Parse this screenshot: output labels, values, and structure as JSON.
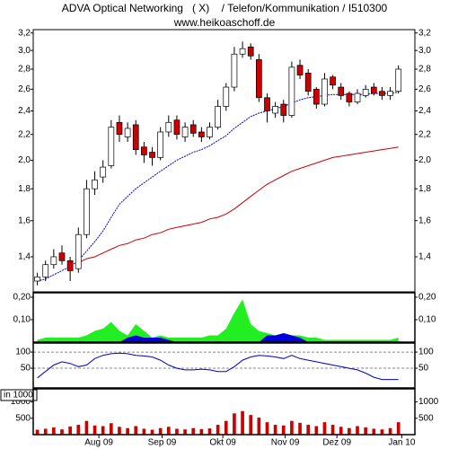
{
  "chart_data": [
    {
      "type": "candlestick",
      "title": "ADVA Optical Networking   ( X)    / Telefon/Kommunikation / I510300",
      "subtitle": "www.heikoaschoff.de",
      "xlim": [
        -0.5,
        46
      ],
      "log_scale": true,
      "ylim": [
        1.23,
        3.24
      ],
      "yticks": [
        {
          "value": 1.4,
          "label": "1,4"
        },
        {
          "value": 1.6,
          "label": "1,6"
        },
        {
          "value": 1.8,
          "label": "1,8"
        },
        {
          "value": 2.0,
          "label": "2,0"
        },
        {
          "value": 2.2,
          "label": "2,2"
        },
        {
          "value": 2.4,
          "label": "2,4"
        },
        {
          "value": 2.6,
          "label": "2,6"
        },
        {
          "value": 2.8,
          "label": "2,8"
        },
        {
          "value": 3.0,
          "label": "3,0"
        },
        {
          "value": 3.2,
          "label": "3,2"
        }
      ],
      "up_color": "#ffffff",
      "down_color": "#cc0000",
      "open": [
        1.28,
        1.3,
        1.36,
        1.42,
        1.38,
        1.34,
        1.52,
        1.8,
        1.88,
        1.96,
        2.3,
        2.18,
        2.28,
        2.1,
        2.06,
        2.02,
        2.22,
        2.32,
        2.18,
        2.28,
        2.22,
        2.18,
        2.26,
        2.44,
        2.62,
        2.96,
        3.04,
        2.9,
        2.52,
        2.38,
        2.46,
        2.36,
        2.84,
        2.76,
        2.6,
        2.46,
        2.72,
        2.62,
        2.56,
        2.48,
        2.54,
        2.62,
        2.58,
        2.54,
        2.58
      ],
      "high": [
        1.32,
        1.38,
        1.44,
        1.46,
        1.4,
        1.56,
        1.86,
        1.92,
        2.0,
        2.32,
        2.36,
        2.3,
        2.32,
        2.14,
        2.1,
        2.26,
        2.36,
        2.36,
        2.3,
        2.32,
        2.26,
        2.3,
        2.5,
        2.66,
        3.04,
        3.1,
        3.08,
        2.96,
        2.56,
        2.48,
        2.5,
        2.88,
        2.9,
        2.8,
        2.62,
        2.76,
        2.74,
        2.66,
        2.58,
        2.6,
        2.64,
        2.66,
        2.62,
        2.62,
        2.84
      ],
      "low": [
        1.26,
        1.28,
        1.34,
        1.36,
        1.28,
        1.32,
        1.5,
        1.76,
        1.84,
        1.94,
        2.14,
        2.14,
        2.04,
        1.98,
        1.96,
        2.0,
        2.18,
        2.16,
        2.14,
        2.18,
        2.14,
        2.16,
        2.24,
        2.4,
        2.58,
        2.92,
        2.9,
        2.48,
        2.3,
        2.34,
        2.3,
        2.34,
        2.7,
        2.54,
        2.42,
        2.44,
        2.6,
        2.5,
        2.44,
        2.46,
        2.52,
        2.54,
        2.5,
        2.5,
        2.56
      ],
      "close": [
        1.3,
        1.36,
        1.4,
        1.38,
        1.33,
        1.52,
        1.8,
        1.86,
        1.95,
        2.26,
        2.2,
        2.25,
        2.08,
        2.04,
        2.02,
        2.22,
        2.3,
        2.2,
        2.26,
        2.21,
        2.18,
        2.26,
        2.44,
        2.62,
        2.96,
        3.02,
        2.94,
        2.52,
        2.4,
        2.44,
        2.36,
        2.82,
        2.74,
        2.58,
        2.46,
        2.7,
        2.64,
        2.54,
        2.48,
        2.56,
        2.6,
        2.56,
        2.54,
        2.58,
        2.8
      ],
      "overlays": [
        {
          "color": "#0000cc",
          "dashed": true,
          "values": [
            1.28,
            1.29,
            1.31,
            1.33,
            1.35,
            1.38,
            1.43,
            1.48,
            1.54,
            1.62,
            1.7,
            1.75,
            1.8,
            1.84,
            1.88,
            1.92,
            1.96,
            2.0,
            2.03,
            2.06,
            2.08,
            2.11,
            2.15,
            2.19,
            2.25,
            2.3,
            2.35,
            2.38,
            2.4,
            2.42,
            2.44,
            2.47,
            2.5,
            2.52,
            2.53,
            2.54,
            2.55,
            2.55,
            2.55,
            2.55,
            2.55,
            2.56,
            2.56,
            2.56,
            2.57
          ]
        },
        {
          "color": "#cc0000",
          "dashed": false,
          "values": [
            null,
            null,
            null,
            null,
            null,
            1.37,
            1.39,
            1.4,
            1.42,
            1.44,
            1.46,
            1.47,
            1.49,
            1.5,
            1.52,
            1.53,
            1.55,
            1.56,
            1.57,
            1.58,
            1.59,
            1.61,
            1.62,
            1.64,
            1.67,
            1.71,
            1.75,
            1.79,
            1.83,
            1.86,
            1.89,
            1.92,
            1.94,
            1.96,
            1.98,
            2.0,
            2.02,
            2.03,
            2.04,
            2.05,
            2.06,
            2.07,
            2.08,
            2.09,
            2.1
          ]
        }
      ]
    },
    {
      "type": "area",
      "xlim": [
        -0.5,
        46
      ],
      "ylim": [
        0,
        0.22
      ],
      "yticks": [
        {
          "value": 0.1,
          "label": "0,10"
        },
        {
          "value": 0.2,
          "label": "0,20"
        }
      ],
      "series": [
        {
          "color": "#22ee22",
          "values": [
            0.01,
            0.02,
            0.02,
            0.02,
            0.02,
            0.02,
            0.03,
            0.05,
            0.06,
            0.09,
            0.05,
            0.03,
            0.08,
            0.05,
            0.02,
            0.03,
            0.02,
            0.02,
            0.02,
            0.02,
            0.02,
            0.03,
            0.03,
            0.06,
            0.13,
            0.19,
            0.08,
            0.05,
            0.04,
            0.03,
            0.04,
            0.03,
            0.03,
            0.02,
            0.02,
            0.01,
            0.01,
            0.01,
            0.01,
            0.01,
            0.01,
            0.01,
            0.01,
            0.01,
            0.02
          ]
        },
        {
          "color": "#0000dd",
          "values": [
            0,
            0,
            0,
            0,
            0,
            0,
            0,
            0,
            0,
            0,
            0,
            0.02,
            0.03,
            0.02,
            0.02,
            0.02,
            0.01,
            0,
            0,
            0,
            0,
            0,
            0,
            0,
            0,
            0,
            0,
            0,
            0.03,
            0.03,
            0.04,
            0.03,
            0.02,
            0,
            0,
            0,
            0,
            0,
            0,
            0,
            0,
            0,
            0,
            0,
            0
          ]
        }
      ]
    },
    {
      "type": "line",
      "xlim": [
        -0.5,
        46
      ],
      "ylim": [
        -11,
        128
      ],
      "yticks": [
        50,
        100
      ],
      "color": "#0000cc",
      "values": [
        20,
        40,
        60,
        70,
        65,
        55,
        60,
        80,
        90,
        95,
        97,
        95,
        90,
        88,
        85,
        75,
        60,
        50,
        45,
        45,
        47,
        45,
        40,
        40,
        55,
        75,
        85,
        90,
        88,
        85,
        80,
        90,
        80,
        75,
        70,
        65,
        60,
        55,
        50,
        45,
        35,
        22,
        15,
        15,
        15
      ]
    },
    {
      "type": "bar",
      "xlim": [
        -0.5,
        46
      ],
      "ylim": [
        0,
        1400
      ],
      "yticks": [
        500,
        1000
      ],
      "y_label": "in 1000",
      "color": "#cc0000",
      "values": [
        150,
        180,
        220,
        160,
        250,
        300,
        420,
        280,
        260,
        350,
        240,
        200,
        260,
        180,
        150,
        200,
        240,
        180,
        160,
        200,
        170,
        190,
        300,
        420,
        650,
        720,
        600,
        520,
        380,
        300,
        280,
        420,
        360,
        300,
        260,
        380,
        300,
        240,
        200,
        260,
        220,
        180,
        160,
        200,
        380
      ],
      "xticks": [
        {
          "value": 7.5,
          "label": "Aug 09"
        },
        {
          "value": 15.2,
          "label": "Sep 09"
        },
        {
          "value": 22.6,
          "label": "Okt 09"
        },
        {
          "value": 30.2,
          "label": "Nov 09"
        },
        {
          "value": 36.5,
          "label": "Dez 09"
        },
        {
          "value": 44.4,
          "label": "Jan 10"
        }
      ]
    }
  ]
}
